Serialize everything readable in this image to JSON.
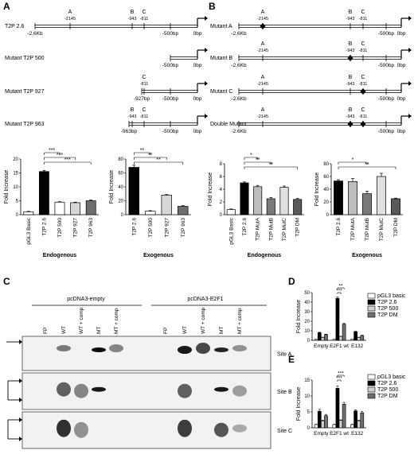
{
  "panels": {
    "A": "A",
    "B": "B",
    "C": "C",
    "D": "D",
    "E": "E"
  },
  "constructs_a": [
    {
      "name": "T2P 2.6",
      "start": "-2.6Kb",
      "sites": [
        {
          "id": "A",
          "pos": "-2145"
        },
        {
          "id": "B",
          "pos": "-943"
        },
        {
          "id": "C",
          "pos": "-811"
        }
      ],
      "mid": "-500bp",
      "end": "0bp"
    },
    {
      "name": "Mutant T2P 500",
      "start": "-500bp",
      "sites": [],
      "mid": "",
      "end": "0bp"
    },
    {
      "name": "Mutant T2P 927",
      "start": "-927bp",
      "sites": [
        {
          "id": "C",
          "pos": "-811"
        }
      ],
      "mid": "-500bp",
      "end": "0bp"
    },
    {
      "name": "Mutant T2P 963",
      "start": "-963bp",
      "sites": [
        {
          "id": "B",
          "pos": "-943"
        },
        {
          "id": "C",
          "pos": "-811"
        }
      ],
      "mid": "-500bp",
      "end": "0bp"
    }
  ],
  "constructs_b": [
    {
      "name": "Mutant A",
      "start": "-2.6Kb",
      "mutated": [
        "A"
      ]
    },
    {
      "name": "Mutant B",
      "start": "-2.6Kb",
      "mutated": [
        "B"
      ]
    },
    {
      "name": "Mutant C",
      "start": "-2.6Kb",
      "mutated": [
        "C"
      ]
    },
    {
      "name": "Double Mutant",
      "start": "-2.6Kb",
      "mutated": [
        "B",
        "C"
      ]
    }
  ],
  "site_positions": {
    "A": "-2145",
    "B": "-943",
    "C": "-811"
  },
  "scale_labels": {
    "mid": "-500bp",
    "end": "0bp"
  },
  "chart_data": [
    {
      "id": "A-endogenous",
      "type": "bar",
      "title": "Endogenous",
      "ylabel": "Fold Increase",
      "categories": [
        "pGL3 Basic",
        "T2P 2.6",
        "T2P 500",
        "T2P 927",
        "T2P 963"
      ],
      "values": [
        1.0,
        15.5,
        4.5,
        4.3,
        5.0
      ],
      "errors": [
        0.2,
        0.4,
        0.2,
        0.2,
        0.3
      ],
      "colors": [
        "#ffffff",
        "#000000",
        "#ffffff",
        "#d6d6d6",
        "#6e6e6e"
      ],
      "ylim": [
        0,
        20
      ],
      "yticks": [
        0,
        5,
        10,
        15,
        20
      ],
      "significance": [
        {
          "from": 1,
          "to": 2,
          "label": "***"
        },
        {
          "from": 1,
          "to": 3,
          "label": "***"
        },
        {
          "from": 1,
          "to": 4,
          "label": "***"
        }
      ]
    },
    {
      "id": "A-exogenous",
      "type": "bar",
      "title": "Exogenous",
      "ylabel": "Fold Increase",
      "categories": [
        "T2P 2.6",
        "T2P 500",
        "T2P 927",
        "T2P 963"
      ],
      "values": [
        68,
        5,
        28,
        12
      ],
      "errors": [
        3,
        0.8,
        1,
        1
      ],
      "colors": [
        "#000000",
        "#ffffff",
        "#d6d6d6",
        "#6e6e6e"
      ],
      "ylim": [
        0,
        80
      ],
      "yticks": [
        0,
        20,
        40,
        60,
        80
      ],
      "significance": [
        {
          "from": 0,
          "to": 1,
          "label": "**"
        },
        {
          "from": 0,
          "to": 2,
          "label": "**"
        },
        {
          "from": 0,
          "to": 3,
          "label": "**"
        }
      ]
    },
    {
      "id": "B-endogenous",
      "type": "bar",
      "title": "Endogenous",
      "ylabel": "Fold Increase",
      "categories": [
        "pGL3 Basic",
        "T2P 2.6",
        "T2P MutA",
        "T2P MutB",
        "T2P MutC",
        "T2P DM"
      ],
      "values": [
        0.8,
        5.0,
        4.4,
        2.5,
        4.3,
        2.4
      ],
      "errors": [
        0.1,
        0.15,
        0.2,
        0.2,
        0.2,
        0.15
      ],
      "colors": [
        "#ffffff",
        "#000000",
        "#bdbdbd",
        "#7a7a7a",
        "#e0e0e0",
        "#5a5a5a"
      ],
      "ylim": [
        0,
        8
      ],
      "yticks": [
        0,
        2,
        4,
        6,
        8
      ],
      "significance": [
        {
          "from": 1,
          "to": 2,
          "label": "*"
        },
        {
          "from": 1,
          "to": 3,
          "label": "**"
        },
        {
          "from": 1,
          "to": 5,
          "label": "**"
        }
      ]
    },
    {
      "id": "B-exogenous",
      "type": "bar",
      "title": "Exogenous",
      "ylabel": "Fold Increase",
      "categories": [
        "T2P 2.6",
        "T2P MutA",
        "T2P MutB",
        "T2P MutC",
        "T2P DM"
      ],
      "values": [
        53,
        52,
        33,
        60,
        25
      ],
      "errors": [
        2,
        5,
        4,
        5,
        1
      ],
      "colors": [
        "#000000",
        "#bdbdbd",
        "#7a7a7a",
        "#e0e0e0",
        "#5a5a5a"
      ],
      "ylim": [
        0,
        80
      ],
      "yticks": [
        0,
        20,
        40,
        60,
        80
      ],
      "significance": [
        {
          "from": 0,
          "to": 2,
          "label": "*"
        },
        {
          "from": 0,
          "to": 4,
          "label": "**"
        }
      ]
    },
    {
      "id": "D",
      "type": "bar",
      "ylabel": "Fold Increase",
      "groups": [
        "Empty",
        "E2F1 wt",
        "E132"
      ],
      "series": [
        {
          "name": "pGL3 basic",
          "values": [
            1,
            1,
            1
          ],
          "errors": [
            0.1,
            0.1,
            0.1
          ],
          "color": "#ffffff"
        },
        {
          "name": "T2P 2.6",
          "values": [
            8,
            44,
            9
          ],
          "errors": [
            0.5,
            1.5,
            0.5
          ],
          "color": "#000000"
        },
        {
          "name": "T2P 500",
          "values": [
            3,
            4,
            3
          ],
          "errors": [
            0.3,
            0.3,
            0.3
          ],
          "color": "#d0d0d0"
        },
        {
          "name": "T2P DM",
          "values": [
            6,
            17,
            5
          ],
          "errors": [
            0.4,
            0.7,
            0.4
          ],
          "color": "#6e6e6e"
        }
      ],
      "ylim": [
        0,
        50
      ],
      "yticks": [
        0,
        10,
        20,
        30,
        40,
        50
      ],
      "significance": [
        {
          "group": 1,
          "from": 1,
          "to": 3,
          "label": "**"
        },
        {
          "group": 1,
          "from": 1,
          "to": 2,
          "label": "***"
        }
      ]
    },
    {
      "id": "E",
      "type": "bar",
      "ylabel": "Fold Increase",
      "groups": [
        "Empty",
        "E2F1 wt",
        "E132"
      ],
      "series": [
        {
          "name": "pGL3 basic",
          "values": [
            1,
            1,
            1
          ],
          "errors": [
            0.1,
            0.1,
            0.1
          ],
          "color": "#ffffff"
        },
        {
          "name": "T2P 2.6",
          "values": [
            5.2,
            12.4,
            5.3
          ],
          "errors": [
            0.6,
            0.8,
            0.3
          ],
          "color": "#000000"
        },
        {
          "name": "T2P 500",
          "values": [
            2.2,
            2.3,
            2.2
          ],
          "errors": [
            0.2,
            0.2,
            0.2
          ],
          "color": "#d0d0d0"
        },
        {
          "name": "T2P DM",
          "values": [
            3.8,
            7.4,
            4.7
          ],
          "errors": [
            0.4,
            0.6,
            0.4
          ],
          "color": "#6e6e6e"
        }
      ],
      "ylim": [
        0,
        15
      ],
      "yticks": [
        0,
        5,
        10,
        15
      ],
      "significance": [
        {
          "group": 1,
          "from": 1,
          "to": 3,
          "label": "***"
        },
        {
          "group": 1,
          "from": 1,
          "to": 2,
          "label": "***"
        }
      ]
    }
  ],
  "gel": {
    "groups": [
      "pcDNA3-empty",
      "pcDNA3-E2F1"
    ],
    "lanes": [
      "FP",
      "WT",
      "WT + comp",
      "MT",
      "MT + comp",
      "FP",
      "WT",
      "WT + comp",
      "MT",
      "MT + comp"
    ],
    "sites": [
      "Site A",
      "Site B",
      "Site C"
    ]
  }
}
